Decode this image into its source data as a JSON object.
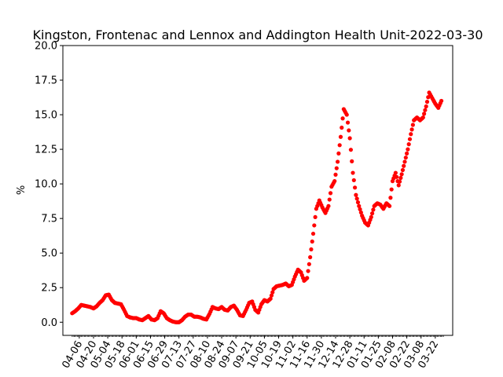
{
  "chart_data": {
    "type": "scatter",
    "title": "Kingston, Frontenac and Lennox and Addington Health Unit-2022-03-30",
    "xlabel": "",
    "ylabel": "%",
    "ylim": [
      -0.95,
      20.0
    ],
    "yticks": [
      0.0,
      2.5,
      5.0,
      7.5,
      10.0,
      12.5,
      15.0,
      17.5,
      20.0
    ],
    "ytick_labels": [
      "0.0",
      "2.5",
      "5.0",
      "7.5",
      "10.0",
      "12.5",
      "15.0",
      "17.5",
      "20.0"
    ],
    "x_start_date": "2021-03-30",
    "x_end_date": "2022-03-30",
    "xtick_labels": [
      "04-06",
      "04-20",
      "05-04",
      "05-18",
      "06-01",
      "06-15",
      "06-29",
      "07-13",
      "07-27",
      "08-10",
      "08-24",
      "09-07",
      "09-21",
      "10-05",
      "10-19",
      "11-02",
      "11-16",
      "11-30",
      "12-14",
      "12-28",
      "01-11",
      "01-25",
      "02-08",
      "02-22",
      "03-08",
      "03-22"
    ],
    "xtick_dates": [
      "2021-04-06",
      "2021-04-20",
      "2021-05-04",
      "2021-05-18",
      "2021-06-01",
      "2021-06-15",
      "2021-06-29",
      "2021-07-13",
      "2021-07-27",
      "2021-08-10",
      "2021-08-24",
      "2021-09-07",
      "2021-09-21",
      "2021-10-05",
      "2021-10-19",
      "2021-11-02",
      "2021-11-16",
      "2021-11-30",
      "2021-12-14",
      "2021-12-28",
      "2022-01-11",
      "2022-01-25",
      "2022-02-08",
      "2022-02-22",
      "2022-03-08",
      "2022-03-22"
    ],
    "series": [
      {
        "color": "#ff0000",
        "marker": "circle",
        "x": [
          "2021-03-30",
          "2021-04-02",
          "2021-04-05",
          "2021-04-08",
          "2021-04-11",
          "2021-04-14",
          "2021-04-17",
          "2021-04-20",
          "2021-04-23",
          "2021-04-26",
          "2021-04-29",
          "2021-05-02",
          "2021-05-05",
          "2021-05-08",
          "2021-05-11",
          "2021-05-14",
          "2021-05-17",
          "2021-05-20",
          "2021-05-23",
          "2021-05-26",
          "2021-05-29",
          "2021-06-01",
          "2021-06-04",
          "2021-06-07",
          "2021-06-10",
          "2021-06-13",
          "2021-06-16",
          "2021-06-19",
          "2021-06-22",
          "2021-06-25",
          "2021-06-28",
          "2021-07-01",
          "2021-07-04",
          "2021-07-07",
          "2021-07-10",
          "2021-07-13",
          "2021-07-16",
          "2021-07-19",
          "2021-07-22",
          "2021-07-25",
          "2021-07-28",
          "2021-07-31",
          "2021-08-03",
          "2021-08-06",
          "2021-08-09",
          "2021-08-12",
          "2021-08-15",
          "2021-08-18",
          "2021-08-21",
          "2021-08-24",
          "2021-08-27",
          "2021-08-30",
          "2021-09-02",
          "2021-09-05",
          "2021-09-08",
          "2021-09-11",
          "2021-09-14",
          "2021-09-17",
          "2021-09-20",
          "2021-09-23",
          "2021-09-26",
          "2021-09-29",
          "2021-10-02",
          "2021-10-05",
          "2021-10-08",
          "2021-10-11",
          "2021-10-14",
          "2021-10-17",
          "2021-10-20",
          "2021-10-23",
          "2021-10-26",
          "2021-10-29",
          "2021-11-01",
          "2021-11-04",
          "2021-11-07",
          "2021-11-10",
          "2021-11-13",
          "2021-11-16",
          "2021-11-19",
          "2021-11-22",
          "2021-11-25",
          "2021-11-28",
          "2021-12-01",
          "2021-12-04",
          "2021-12-07",
          "2021-12-10",
          "2021-12-13",
          "2021-12-16",
          "2021-12-19",
          "2021-12-22",
          "2021-12-25",
          "2021-12-28",
          "2021-12-31",
          "2022-01-03",
          "2022-01-06",
          "2022-01-09",
          "2022-01-12",
          "2022-01-15",
          "2022-01-18",
          "2022-01-21",
          "2022-01-24",
          "2022-01-27",
          "2022-01-30",
          "2022-02-02",
          "2022-02-05",
          "2022-02-08",
          "2022-02-11",
          "2022-02-14",
          "2022-02-17",
          "2022-02-20",
          "2022-02-23",
          "2022-02-26",
          "2022-03-01",
          "2022-03-04",
          "2022-03-07",
          "2022-03-10",
          "2022-03-13",
          "2022-03-16",
          "2022-03-19",
          "2022-03-22",
          "2022-03-25",
          "2022-03-28"
        ],
        "y": [
          0.65,
          0.8,
          1.0,
          1.25,
          1.2,
          1.15,
          1.1,
          1.0,
          1.15,
          1.4,
          1.6,
          1.95,
          2.0,
          1.6,
          1.4,
          1.35,
          1.3,
          0.9,
          0.45,
          0.35,
          0.3,
          0.3,
          0.2,
          0.15,
          0.3,
          0.45,
          0.2,
          0.15,
          0.3,
          0.8,
          0.65,
          0.3,
          0.15,
          0.05,
          0.0,
          0.0,
          0.15,
          0.4,
          0.55,
          0.55,
          0.4,
          0.4,
          0.35,
          0.25,
          0.2,
          0.6,
          1.1,
          1.0,
          0.95,
          1.1,
          0.9,
          0.85,
          1.1,
          1.2,
          0.9,
          0.5,
          0.45,
          0.9,
          1.4,
          1.5,
          0.9,
          0.7,
          1.3,
          1.6,
          1.5,
          1.7,
          2.4,
          2.6,
          2.65,
          2.7,
          2.8,
          2.6,
          2.7,
          3.3,
          3.8,
          3.6,
          3.0,
          3.2,
          4.7,
          6.4,
          8.2,
          8.8,
          8.3,
          7.9,
          8.4,
          9.8,
          10.2,
          11.6,
          13.4,
          15.4,
          15.0,
          13.3,
          10.8,
          9.2,
          8.4,
          7.7,
          7.2,
          7.0,
          7.6,
          8.4,
          8.6,
          8.5,
          8.2,
          8.6,
          8.4,
          10.2,
          10.8,
          9.9,
          10.7,
          11.6,
          12.5,
          13.6,
          14.6,
          14.8,
          14.6,
          14.8,
          15.6,
          16.6,
          16.2,
          15.8,
          15.5,
          16.0
        ]
      }
    ]
  }
}
